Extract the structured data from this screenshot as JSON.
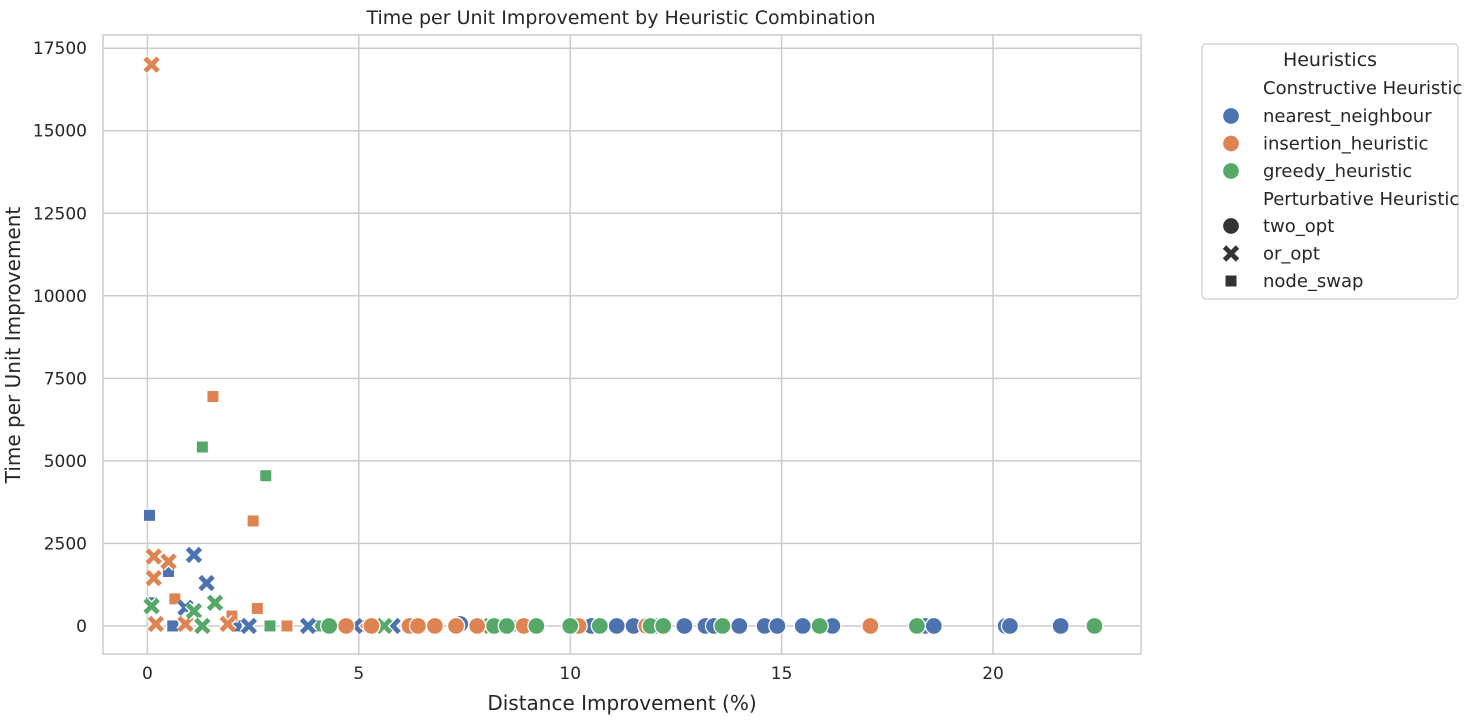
{
  "chart_data": {
    "type": "scatter",
    "title": "Time per Unit Improvement by Heuristic Combination",
    "xlabel": "Distance Improvement (%)",
    "ylabel": "Time per Unit Improvement",
    "xlim": [
      -1.05,
      23.5
    ],
    "ylim": [
      -850,
      17900
    ],
    "xticks": [
      0,
      5,
      10,
      15,
      20
    ],
    "yticks": [
      0,
      2500,
      5000,
      7500,
      10000,
      12500,
      15000,
      17500
    ],
    "grid": true,
    "legend": {
      "title": "Heuristics",
      "placement": "outside-top-right",
      "hue_title": "Constructive Heuristic",
      "style_title": "Perturbative Heuristic",
      "hue_entries": [
        {
          "label": "nearest_neighbour",
          "color": "#4c72b0"
        },
        {
          "label": "insertion_heuristic",
          "color": "#dd8452"
        },
        {
          "label": "greedy_heuristic",
          "color": "#55a868"
        }
      ],
      "style_entries": [
        {
          "label": "two_opt",
          "marker": "circle"
        },
        {
          "label": "or_opt",
          "marker": "x"
        },
        {
          "label": "node_swap",
          "marker": "square"
        }
      ]
    },
    "series": [
      {
        "constructive": "nearest_neighbour",
        "perturbative": "two_opt",
        "color": "#4c72b0",
        "marker": "circle",
        "points": [
          [
            7.4,
            60
          ],
          [
            10.5,
            0
          ],
          [
            11.1,
            0
          ],
          [
            11.5,
            0
          ],
          [
            12.0,
            0
          ],
          [
            12.7,
            0
          ],
          [
            13.2,
            0
          ],
          [
            13.4,
            0
          ],
          [
            14.0,
            0
          ],
          [
            14.6,
            0
          ],
          [
            14.9,
            0
          ],
          [
            15.5,
            0
          ],
          [
            16.2,
            0
          ],
          [
            18.4,
            0
          ],
          [
            18.6,
            0
          ],
          [
            20.3,
            0
          ],
          [
            20.4,
            0
          ],
          [
            21.6,
            0
          ]
        ]
      },
      {
        "constructive": "insertion_heuristic",
        "perturbative": "two_opt",
        "color": "#dd8452",
        "marker": "circle",
        "points": [
          [
            4.7,
            0
          ],
          [
            5.3,
            0
          ],
          [
            6.2,
            0
          ],
          [
            6.4,
            0
          ],
          [
            6.8,
            0
          ],
          [
            7.3,
            0
          ],
          [
            7.8,
            0
          ],
          [
            8.9,
            0
          ],
          [
            10.2,
            0
          ],
          [
            11.8,
            0
          ],
          [
            17.1,
            0
          ]
        ]
      },
      {
        "constructive": "greedy_heuristic",
        "perturbative": "two_opt",
        "color": "#55a868",
        "marker": "circle",
        "points": [
          [
            4.3,
            0
          ],
          [
            8.2,
            0
          ],
          [
            8.5,
            0
          ],
          [
            9.2,
            0
          ],
          [
            10.0,
            0
          ],
          [
            10.7,
            0
          ],
          [
            11.9,
            0
          ],
          [
            12.2,
            0
          ],
          [
            13.6,
            0
          ],
          [
            15.9,
            0
          ],
          [
            18.2,
            0
          ],
          [
            22.4,
            0
          ]
        ]
      },
      {
        "constructive": "nearest_neighbour",
        "perturbative": "or_opt",
        "color": "#4c72b0",
        "marker": "x",
        "points": [
          [
            1.1,
            2150
          ],
          [
            1.4,
            1300
          ],
          [
            0.9,
            550
          ],
          [
            2.4,
            0
          ],
          [
            3.8,
            0
          ],
          [
            4.9,
            0
          ],
          [
            5.8,
            0
          ]
        ]
      },
      {
        "constructive": "insertion_heuristic",
        "perturbative": "or_opt",
        "color": "#dd8452",
        "marker": "x",
        "points": [
          [
            0.1,
            17000
          ],
          [
            0.15,
            2100
          ],
          [
            0.15,
            1450
          ],
          [
            0.5,
            1950
          ],
          [
            0.2,
            60
          ],
          [
            0.9,
            60
          ],
          [
            1.9,
            60
          ]
        ]
      },
      {
        "constructive": "greedy_heuristic",
        "perturbative": "or_opt",
        "color": "#55a868",
        "marker": "x",
        "points": [
          [
            1.6,
            700
          ],
          [
            1.1,
            450
          ],
          [
            0.1,
            600
          ],
          [
            1.3,
            0
          ],
          [
            5.6,
            0
          ],
          [
            7.9,
            0
          ]
        ]
      },
      {
        "constructive": "nearest_neighbour",
        "perturbative": "node_swap",
        "color": "#4c72b0",
        "marker": "square",
        "points": [
          [
            0.05,
            3350
          ],
          [
            0.5,
            1650
          ],
          [
            0.1,
            700
          ],
          [
            0.6,
            0
          ],
          [
            2.1,
            0
          ],
          [
            3.9,
            0
          ]
        ]
      },
      {
        "constructive": "insertion_heuristic",
        "perturbative": "node_swap",
        "color": "#dd8452",
        "marker": "square",
        "points": [
          [
            1.55,
            6950
          ],
          [
            2.5,
            3180
          ],
          [
            0.65,
            820
          ],
          [
            2.6,
            530
          ],
          [
            2.0,
            300
          ],
          [
            3.3,
            0
          ],
          [
            5.0,
            0
          ]
        ]
      },
      {
        "constructive": "greedy_heuristic",
        "perturbative": "node_swap",
        "color": "#55a868",
        "marker": "square",
        "points": [
          [
            1.3,
            5420
          ],
          [
            2.8,
            4550
          ],
          [
            2.9,
            0
          ],
          [
            4.1,
            0
          ],
          [
            8.8,
            0
          ]
        ]
      }
    ]
  }
}
